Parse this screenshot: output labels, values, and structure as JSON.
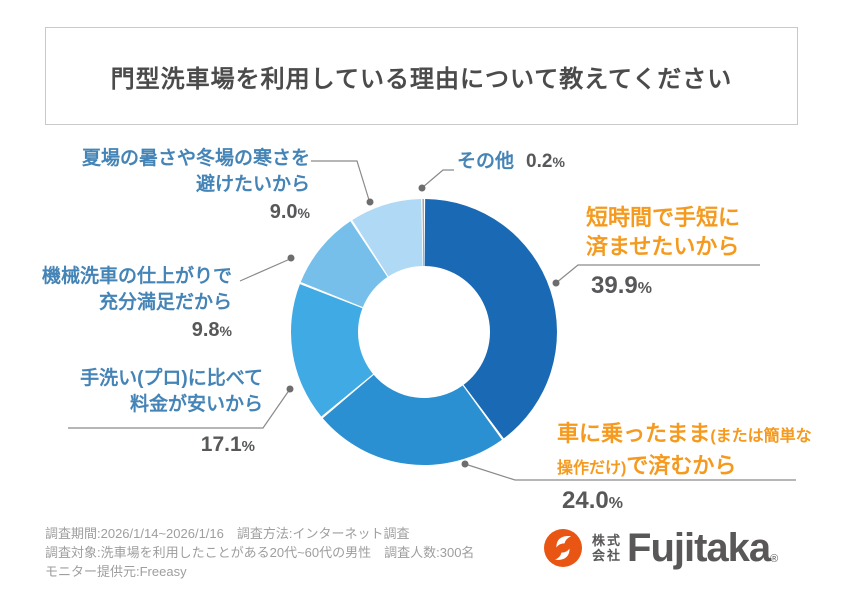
{
  "title": "門型洗車場を利用している理由について教えてください",
  "chart_data": {
    "type": "pie",
    "subtype": "donut",
    "title": "門型洗車場を利用している理由について教えてください",
    "start_angle_deg": 0,
    "direction": "clockwise",
    "inner_radius_ratio": 0.5,
    "legend": "callout-labels",
    "segments": [
      {
        "label": "短時間で手短に済ませたいから",
        "value": 39.9,
        "color": "#1a69b4"
      },
      {
        "label": "車に乗ったまま(または簡単な操作だけ)で済むから",
        "value": 24.0,
        "color": "#2b90d1"
      },
      {
        "label": "手洗い(プロ)に比べて料金が安いから",
        "value": 17.1,
        "color": "#3faae3"
      },
      {
        "label": "機械洗車の仕上がりで充分満足だから",
        "value": 9.8,
        "color": "#76bfeb"
      },
      {
        "label": "夏場の暑さや冬場の寒さを避けたいから",
        "value": 9.0,
        "color": "#afd9f5"
      },
      {
        "label": "その他",
        "value": 0.2,
        "color": "#9b9b9b"
      }
    ]
  },
  "callouts": {
    "tanjikan": {
      "line1": "短時間で手短に",
      "line2": "済ませたいから",
      "pct": "39.9",
      "unit": "%"
    },
    "kuruma": {
      "part1": "車に乗ったまま",
      "part2": "(または簡単な",
      "part3": "操作だけ)",
      "part4": "で済むから",
      "pct": "24.0",
      "unit": "%"
    },
    "tearai": {
      "line1": "手洗い(プロ)に比べて",
      "line2": "料金が安いから",
      "pct": "17.1",
      "unit": "%"
    },
    "kikai": {
      "line1": "機械洗車の仕上がりで",
      "line2": "充分満足だから",
      "pct": "9.8",
      "unit": "%"
    },
    "natsuba": {
      "line1": "夏場の暑さや冬場の寒さを",
      "line2": "避けたいから",
      "pct": "9.0",
      "unit": "%"
    },
    "sonota": {
      "label": "その他",
      "pct": "0.2",
      "unit": "%"
    }
  },
  "footer": {
    "line1": "調査期間:2026/1/14~2026/1/16　調査方法:インターネット調査",
    "line2": "調査対象:洗車場を利用したことがある20代~60代の男性　調査人数:300名",
    "line3": "モニター提供元:Freeasy"
  },
  "logo": {
    "company_prefix_top": "株式",
    "company_prefix_bottom": "会社",
    "name": "Fujitaka",
    "registered": "®",
    "icon_color": "#e95513",
    "text_color": "#595757"
  },
  "colors": {
    "title_text": "#4b4b4b",
    "blue_label": "#4584b6",
    "orange_label": "#f59a1e",
    "pct_text": "#57585a",
    "leader_line": "#8a8a8a",
    "footer_text": "#9e9e9e"
  }
}
